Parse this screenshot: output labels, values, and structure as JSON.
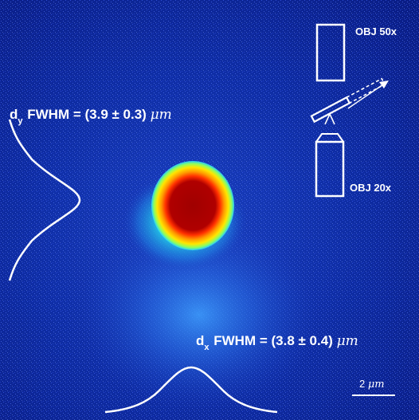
{
  "figure": {
    "dy_label": {
      "axis": "d",
      "axis_sub": "y",
      "text": " FWHM = (3.9 ± 0.3) ",
      "unit": "μm"
    },
    "dx_label": {
      "axis": "d",
      "axis_sub": "x",
      "text": " FWHM = (3.8 ± 0.4) ",
      "unit": "μm"
    },
    "objective_top": "OBJ 50x",
    "objective_bottom": "OBJ 20x",
    "scale_bar": {
      "value": "2 ",
      "unit": "μm"
    },
    "colors": {
      "background": "#0b228f",
      "spot_core": "#b00000",
      "spot_ring": "#ffcc00",
      "halo": "#22c7e8",
      "overlay": "#ffffff"
    }
  }
}
